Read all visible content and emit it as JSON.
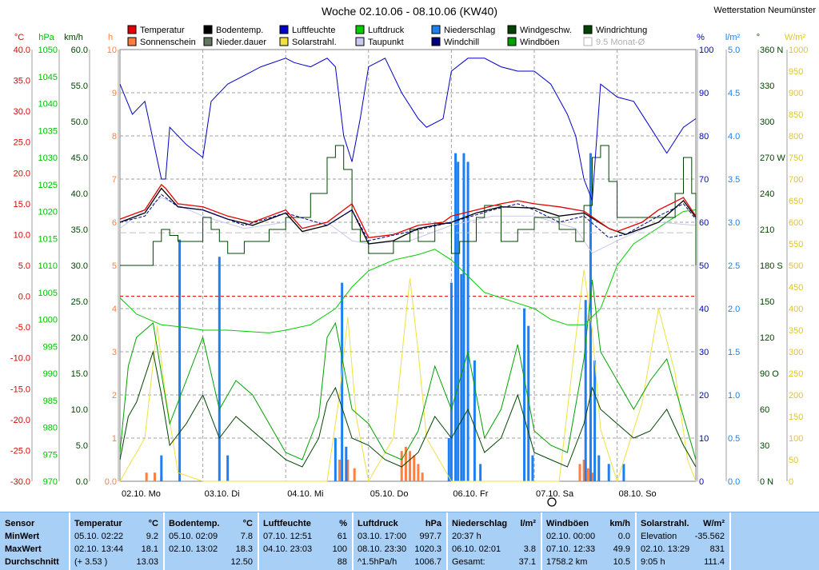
{
  "title": "Woche 02.10.06 - 08.10.06 (KW40)",
  "station": "Wetterstation Neumünster",
  "colors": {
    "temp": "#e00000",
    "ground": "#000000",
    "humid": "#0000c8",
    "pressure": "#00cc00",
    "wind": "#004400",
    "sun": "#ff7f40",
    "dur": "#607860",
    "solar": "#f0e040",
    "dew": "#c8c8f0",
    "rain": "#1e7ff0",
    "chill": "#000080",
    "gust": "#00a000",
    "zeroline": "#e00000",
    "stats_bg": "#a8cff6"
  },
  "legend": [
    {
      "key": "temp",
      "label": "Temperatur"
    },
    {
      "key": "ground",
      "label": "Bodentemp."
    },
    {
      "key": "humid",
      "label": "Luftfeuchte"
    },
    {
      "key": "pressure",
      "label": "Luftdruck"
    },
    {
      "key": "rain",
      "label": "Niederschlag"
    },
    {
      "key": "wind",
      "label": "Windgeschw."
    },
    {
      "key": "wind",
      "label": "Windrichtung"
    },
    {
      "key": "sun",
      "label": "Sonnenschein"
    },
    {
      "key": "dur",
      "label": "Nieder.dauer"
    },
    {
      "key": "solar",
      "label": "Solarstrahl."
    },
    {
      "key": "dew",
      "label": "Taupunkt"
    },
    {
      "key": "chill",
      "label": "Windchill"
    },
    {
      "key": "gust",
      "label": "Windböen"
    },
    {
      "key": "avg",
      "label": "9.5 Monat-Ø"
    }
  ],
  "chart_data": {
    "type": "line",
    "title": "Woche 02.10.06 - 08.10.06 (KW40)",
    "x_labels": [
      "02.10. Mo",
      "03.10. Di",
      "04.10. Mi",
      "05.10. Do",
      "06.10. Fr",
      "07.10. Sa",
      "08.10. So"
    ],
    "x_range_days": [
      0,
      6.95
    ],
    "axes": {
      "temp": {
        "unit": "°C",
        "range": [
          -30,
          40
        ],
        "ticks": [
          "-30.0",
          "-25.0",
          "-20.0",
          "-15.0",
          "-10.0",
          "-5.0",
          "0.0",
          "5.0",
          "10.0",
          "15.0",
          "20.0",
          "25.0",
          "30.0",
          "35.0",
          "40.0"
        ]
      },
      "pressure": {
        "unit": "hPa",
        "range": [
          970,
          1050
        ],
        "ticks": [
          "970",
          "975",
          "980",
          "985",
          "990",
          "995",
          "1000",
          "1005",
          "1010",
          "1015",
          "1020",
          "1025",
          "1030",
          "1035",
          "1040",
          "1045",
          "1050"
        ]
      },
      "wind": {
        "unit": "km/h",
        "range": [
          0,
          60
        ],
        "ticks": [
          "0.0",
          "5.0",
          "10.0",
          "15.0",
          "20.0",
          "25.0",
          "30.0",
          "35.0",
          "40.0",
          "45.0",
          "50.0",
          "55.0",
          "60.0"
        ]
      },
      "hours": {
        "unit": "h",
        "range": [
          0,
          10
        ],
        "ticks": [
          "0.0",
          "1",
          "2",
          "3",
          "4",
          "5",
          "6",
          "7",
          "8",
          "9",
          "10"
        ]
      },
      "humidity": {
        "unit": "%",
        "range": [
          0,
          100
        ],
        "ticks": [
          "0",
          "10",
          "20",
          "30",
          "40",
          "50",
          "60",
          "70",
          "80",
          "90",
          "100"
        ]
      },
      "rain": {
        "unit": "l/m²",
        "range": [
          0,
          5
        ],
        "ticks": [
          "0.0",
          "0.5",
          "1.0",
          "1.5",
          "2.0",
          "2.5",
          "3.0",
          "3.5",
          "4.0",
          "4.5",
          "5.0"
        ]
      },
      "direction": {
        "unit": "°",
        "range": [
          0,
          360
        ],
        "ticks": [
          "0 N",
          "30",
          "60",
          "90 O",
          "120",
          "150",
          "180 S",
          "210",
          "240",
          "270 W",
          "300",
          "330",
          "360 N"
        ]
      },
      "solar": {
        "unit": "W/m²",
        "range": [
          0,
          1000
        ],
        "ticks": [
          "0",
          "50",
          "100",
          "150",
          "200",
          "250",
          "300",
          "350",
          "400",
          "450",
          "500",
          "550",
          "600",
          "650",
          "700",
          "750",
          "800",
          "850",
          "900",
          "950",
          "1000"
        ]
      }
    },
    "series": [
      {
        "name": "Temperatur",
        "axis": "temp",
        "x": [
          0,
          0.3,
          0.5,
          0.55,
          0.7,
          1,
          1.3,
          1.6,
          1.8,
          2,
          2.2,
          2.5,
          2.8,
          3,
          3.3,
          3.6,
          3.9,
          4,
          4.3,
          4.6,
          4.8,
          5,
          5.3,
          5.6,
          5.9,
          6,
          6.3,
          6.5,
          6.8,
          6.95
        ],
        "y": [
          12.5,
          14,
          18.1,
          17.5,
          15,
          14.5,
          13,
          12,
          13,
          14,
          11,
          12,
          15,
          9.5,
          10,
          11.5,
          12,
          13,
          14,
          15,
          15.5,
          15,
          14.5,
          13.8,
          11,
          10.5,
          12,
          14,
          16,
          13
        ]
      },
      {
        "name": "Bodentemp.",
        "axis": "temp",
        "x": [
          0,
          0.3,
          0.5,
          0.7,
          1,
          1.3,
          1.6,
          2,
          2.2,
          2.5,
          2.8,
          3,
          3.3,
          3.6,
          4,
          4.3,
          4.6,
          5,
          5.3,
          5.6,
          5.9,
          6.1,
          6.5,
          6.8,
          6.95
        ],
        "y": [
          12,
          13.5,
          17.5,
          14.5,
          14,
          12.5,
          11.5,
          13.5,
          10.5,
          11.5,
          14,
          8.5,
          9,
          11,
          12,
          13.5,
          14.5,
          14.3,
          13,
          13.5,
          11,
          10,
          12,
          15.5,
          12.8
        ]
      },
      {
        "name": "Luftfeuchte",
        "axis": "humidity",
        "x": [
          0,
          0.15,
          0.3,
          0.5,
          0.55,
          0.6,
          0.8,
          1,
          1.1,
          1.3,
          1.5,
          1.7,
          2,
          2.1,
          2.3,
          2.5,
          2.6,
          2.7,
          2.8,
          2.9,
          3,
          3.2,
          3.4,
          3.6,
          3.7,
          3.9,
          4,
          4.2,
          4.4,
          4.6,
          4.8,
          5,
          5.2,
          5.4,
          5.5,
          5.6,
          5.7,
          5.8,
          6,
          6.2,
          6.4,
          6.6,
          6.8,
          6.95
        ],
        "y": [
          92,
          85,
          88,
          70,
          70,
          82,
          78,
          75,
          88,
          92,
          94,
          96,
          98,
          97,
          96,
          98,
          96,
          80,
          74,
          84,
          96,
          98,
          90,
          84,
          82,
          84,
          95,
          98,
          98,
          96,
          95,
          95,
          92,
          85,
          80,
          70,
          65,
          92,
          89,
          88,
          82,
          76,
          82,
          84
        ]
      },
      {
        "name": "Taupunkt",
        "axis": "temp",
        "x": [
          0,
          0.5,
          1,
          1.5,
          2,
          2.5,
          2.8,
          3,
          3.5,
          4,
          4.5,
          5,
          5.5,
          5.7,
          6,
          6.5,
          6.95
        ],
        "y": [
          11,
          16,
          13,
          11,
          12,
          12,
          9,
          8.5,
          9,
          11.5,
          13,
          13,
          11,
          7,
          9,
          12,
          11.5
        ]
      },
      {
        "name": "Windchill",
        "axis": "temp",
        "x": [
          0,
          0.3,
          0.5,
          0.7,
          1,
          1.5,
          2,
          2.5,
          2.8,
          3,
          3.5,
          4,
          4.5,
          4.8,
          5,
          5.3,
          5.6,
          5.9,
          6.1,
          6.5,
          6.8,
          6.95
        ],
        "y": [
          12,
          13,
          16.5,
          14.5,
          14,
          11.5,
          13.5,
          11.5,
          14,
          9,
          10.5,
          12,
          14,
          15,
          14,
          12,
          13,
          9.5,
          10,
          13,
          15,
          12.5
        ]
      },
      {
        "name": "Luftdruck",
        "axis": "pressure",
        "x": [
          0,
          0.2,
          0.5,
          0.8,
          1,
          1.3,
          1.6,
          1.8,
          2,
          2.3,
          2.6,
          2.8,
          3,
          3.3,
          3.6,
          3.8,
          4,
          4.2,
          4.4,
          4.6,
          4.8,
          5,
          5.2,
          5.4,
          5.6,
          5.8,
          6,
          6.2,
          6.4,
          6.6,
          6.8,
          6.95
        ],
        "y": [
          1004,
          1001,
          999,
          998.5,
          998,
          998,
          997.7,
          997.5,
          998,
          999,
          1002,
          1006,
          1009,
          1011,
          1012,
          1013,
          1011,
          1008,
          1005,
          1004,
          1003,
          1002,
          1000,
          999,
          999,
          1002,
          1010,
          1014,
          1016,
          1018,
          1020,
          1020.3
        ]
      },
      {
        "name": "Windgeschw.",
        "axis": "wind",
        "x": [
          0,
          0.1,
          0.2,
          0.4,
          0.5,
          0.6,
          0.8,
          1,
          1.2,
          1.4,
          1.6,
          1.8,
          2,
          2.2,
          2.4,
          2.5,
          2.6,
          2.8,
          3,
          3.2,
          3.4,
          3.6,
          3.8,
          4,
          4.2,
          4.4,
          4.6,
          4.8,
          5,
          5.2,
          5.4,
          5.6,
          5.7,
          5.8,
          6,
          6.2,
          6.4,
          6.6,
          6.8,
          6.95
        ],
        "y": [
          3,
          9,
          11,
          18,
          12,
          5,
          8,
          12,
          6,
          9,
          7,
          5,
          3,
          2,
          6,
          11,
          13,
          6,
          5,
          3,
          2,
          4,
          9,
          6,
          10,
          4,
          6,
          12,
          4,
          3,
          2,
          8,
          13,
          10,
          8,
          6,
          7,
          10,
          5,
          2
        ]
      },
      {
        "name": "Windböen",
        "axis": "wind",
        "x": [
          0,
          0.1,
          0.2,
          0.4,
          0.5,
          0.6,
          0.8,
          1,
          1.2,
          1.4,
          1.6,
          1.8,
          2,
          2.2,
          2.4,
          2.5,
          2.6,
          2.8,
          3,
          3.2,
          3.4,
          3.6,
          3.8,
          4,
          4.2,
          4.4,
          4.6,
          4.8,
          5,
          5.2,
          5.4,
          5.6,
          5.7,
          5.8,
          6,
          6.2,
          6.4,
          6.6,
          6.8,
          6.95
        ],
        "y": [
          4,
          16,
          20,
          22,
          15,
          8,
          14,
          20,
          10,
          14,
          12,
          8,
          4,
          3,
          9,
          20,
          22,
          10,
          8,
          4,
          3,
          7,
          16,
          10,
          18,
          6,
          10,
          19,
          7,
          5,
          4,
          17,
          28,
          18,
          14,
          10,
          14,
          17,
          9,
          3
        ]
      },
      {
        "name": "Windrichtung",
        "axis": "direction",
        "x": [
          0,
          0.3,
          0.4,
          0.5,
          0.6,
          0.7,
          0.9,
          1,
          1.1,
          1.2,
          1.3,
          1.5,
          1.7,
          1.8,
          2,
          2.3,
          2.5,
          2.6,
          2.7,
          2.8,
          2.9,
          3,
          3.3,
          3.5,
          3.6,
          3.8,
          4,
          4.1,
          4.3,
          4.4,
          4.6,
          4.8,
          5,
          5.3,
          5.5,
          5.6,
          5.7,
          5.8,
          5.9,
          6,
          6.3,
          6.5,
          6.7,
          6.8,
          6.9,
          6.95
        ],
        "y": [
          180,
          180,
          200,
          210,
          205,
          200,
          200,
          220,
          210,
          200,
          190,
          200,
          200,
          210,
          220,
          240,
          270,
          280,
          260,
          210,
          200,
          190,
          200,
          210,
          200,
          215,
          190,
          200,
          220,
          230,
          200,
          210,
          220,
          210,
          200,
          230,
          270,
          280,
          250,
          220,
          220,
          220,
          240,
          270,
          240,
          180
        ]
      },
      {
        "name": "Sonnenschein",
        "axis": "hours",
        "x": [
          0.32,
          0.42,
          0.5,
          2.65,
          2.75,
          2.83,
          3.4,
          3.45,
          3.5,
          3.55,
          3.6,
          3.65,
          5.55,
          5.6,
          5.65,
          5.7
        ],
        "y": [
          0.2,
          0.2,
          0.1,
          0.5,
          0.5,
          0.3,
          0.7,
          0.8,
          0.7,
          0.6,
          0.4,
          0.2,
          0.4,
          0.5,
          0.3,
          0.2
        ]
      },
      {
        "name": "Solarstrahl.",
        "axis": "solar",
        "x": [
          0,
          0.3,
          0.45,
          0.55,
          0.7,
          1,
          2.5,
          2.65,
          2.75,
          2.85,
          3,
          3.3,
          3.45,
          3.5,
          3.6,
          3.7,
          4,
          5.3,
          5.5,
          5.6,
          5.7,
          5.8,
          6,
          6.3,
          6.5,
          6.7,
          6.85,
          6.95
        ],
        "y": [
          0,
          100,
          360,
          200,
          20,
          0,
          0,
          200,
          380,
          150,
          0,
          100,
          380,
          470,
          300,
          100,
          0,
          0,
          330,
          490,
          350,
          120,
          0,
          180,
          400,
          250,
          50,
          0
        ]
      },
      {
        "name": "Niederschlag",
        "axis": "rain",
        "x": [
          0.5,
          0.72,
          1.2,
          1.3,
          2.6,
          2.68,
          2.73,
          3.97,
          4.0,
          4.05,
          4.08,
          4.12,
          4.15,
          4.2,
          4.28,
          4.35,
          4.88,
          4.93,
          4.98,
          5.62,
          5.68,
          5.73,
          5.78,
          5.9,
          6.08
        ],
        "y": [
          0.3,
          2.8,
          2.6,
          0.3,
          0.5,
          2.3,
          0.4,
          0.5,
          2.3,
          3.8,
          3.7,
          2.4,
          3.8,
          3.7,
          1.4,
          0.2,
          2.0,
          1.8,
          0.3,
          2.1,
          3.8,
          1.4,
          0.3,
          0.2,
          0.2
        ]
      },
      {
        "name": "9.5 Monat-Ø",
        "axis": "temp",
        "x": [
          0,
          6.95
        ],
        "y": [
          10.3,
          10.3
        ]
      }
    ]
  },
  "stats": {
    "sensor": {
      "header": "Sensor",
      "min": "MinWert",
      "max": "MaxWert",
      "avg": "Durchschnitt"
    },
    "temp": {
      "header": "Temperatur",
      "unit": "°C",
      "min_time": "05.10.  02:22",
      "min_val": "9.2",
      "max_time": "02.10.  13:44",
      "max_val": "18.1",
      "avg_note": "(+ 3.53 )",
      "avg_val": "13.03"
    },
    "ground": {
      "header": "Bodentemp.",
      "unit": "°C",
      "min_time": "05.10.  02:09",
      "min_val": "7.8",
      "max_time": "02.10.  13:02",
      "max_val": "18.3",
      "avg_val": "12.50"
    },
    "humid": {
      "header": "Luftfeuchte",
      "unit": "%",
      "min_time": "07.10.  12:51",
      "min_val": "61",
      "max_time": "04.10.  23:03",
      "max_val": "100",
      "avg_val": "88"
    },
    "pressure": {
      "header": "Luftdruck",
      "unit": "hPa",
      "min_time": "03.10.  17:00",
      "min_val": "997.7",
      "max_time": "08.10.  23:30",
      "max_val": "1020.3",
      "avg_note": "^1.5hPa/h",
      "avg_val": "1006.7"
    },
    "rain": {
      "header": "Niederschlag",
      "unit": "l/m²",
      "min_time": "20:37 h",
      "max_time": "06.10.  02:01",
      "max_val": "3.8",
      "avg_note": "Gesamt:",
      "avg_val": "37.1"
    },
    "gust": {
      "header": "Windböen",
      "unit": "km/h",
      "min_time": "02.10.  00:00",
      "min_val": "0.0",
      "max_time": "07.10.  12:33",
      "max_val": "49.9",
      "avg_note": "1758.2 km",
      "avg_val": "10.5"
    },
    "solar": {
      "header": "Solarstrahl.",
      "unit": "W/m²",
      "min_time": "Elevation",
      "min_val": "-35.562",
      "max_time": "02.10.  13:29",
      "max_val": "831",
      "avg_note": "9:05 h",
      "avg_val": "111.4"
    }
  }
}
